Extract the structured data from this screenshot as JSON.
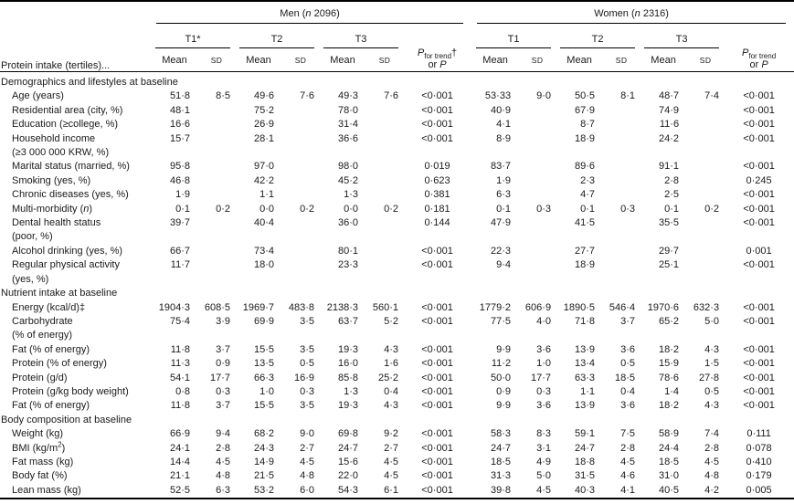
{
  "header": {
    "row_label": "Protein intake (tertiles)...",
    "mean_label": "Mean",
    "sd_label": "SD",
    "men": {
      "title_html": "Men (<i>n</i> 2096)",
      "tertiles": [
        "T1*",
        "T2",
        "T3"
      ],
      "p_html": "<i>P</i><sub>for trend</sub>†<br>or <i>P</i>"
    },
    "women": {
      "title_html": "Women (<i>n</i> 2316)",
      "tertiles": [
        "T1",
        "T2",
        "T3"
      ],
      "p_html": "<i>P</i><sub>for trend</sub><br>or <i>P</i>"
    }
  },
  "sections": [
    {
      "header": "Demographics and lifestyles at baseline",
      "rows": [
        {
          "label_html": "Age (years)",
          "men": [
            "51·8",
            "8·5",
            "49·6",
            "7·6",
            "49·3",
            "7·6"
          ],
          "men_p": "<0·001",
          "women": [
            "53·33",
            "9·0",
            "50·5",
            "8·1",
            "48·7",
            "7·4"
          ],
          "women_p": "<0·001"
        },
        {
          "label_html": "Residential area (city, %)",
          "men": [
            "48·1",
            "",
            "75·2",
            "",
            "78·0",
            ""
          ],
          "men_p": "<0·001",
          "women": [
            "40·9",
            "",
            "67·9",
            "",
            "74·9",
            ""
          ],
          "women_p": "<0·001"
        },
        {
          "label_html": "Education (≥college, %)",
          "men": [
            "16·6",
            "",
            "26·9",
            "",
            "31·4",
            ""
          ],
          "men_p": "<0·001",
          "women": [
            "4·1",
            "",
            "8·7",
            "",
            "11·6",
            ""
          ],
          "women_p": "<0·001"
        },
        {
          "label_html": "Household income<br>(≥3 000 000 KRW, %)",
          "men": [
            "15·7",
            "",
            "28·1",
            "",
            "36·6",
            ""
          ],
          "men_p": "<0·001",
          "women": [
            "8·9",
            "",
            "18·9",
            "",
            "24·2",
            ""
          ],
          "women_p": "<0·001"
        },
        {
          "label_html": "Marital status (married, %)",
          "men": [
            "95·8",
            "",
            "97·0",
            "",
            "98·0",
            ""
          ],
          "men_p": "0·019",
          "women": [
            "83·7",
            "",
            "89·6",
            "",
            "91·1",
            ""
          ],
          "women_p": "<0·001"
        },
        {
          "label_html": "Smoking (yes, %)",
          "men": [
            "46·8",
            "",
            "42·2",
            "",
            "45·2",
            ""
          ],
          "men_p": "0·623",
          "women": [
            "1·9",
            "",
            "2·3",
            "",
            "2·8",
            ""
          ],
          "women_p": "0·245"
        },
        {
          "label_html": "Chronic diseases (yes, %)",
          "men": [
            "1·9",
            "",
            "1·1",
            "",
            "1·3",
            ""
          ],
          "men_p": "0·381",
          "women": [
            "6·3",
            "",
            "4·7",
            "",
            "2·5",
            ""
          ],
          "women_p": "<0·001"
        },
        {
          "label_html": "Multi-morbidity (<i>n</i>)",
          "men": [
            "0·1",
            "0·2",
            "0·0",
            "0·2",
            "0·0",
            "0·2"
          ],
          "men_p": "0·181",
          "women": [
            "0·1",
            "0·3",
            "0·1",
            "0·3",
            "0·1",
            "0·2"
          ],
          "women_p": "<0·001"
        },
        {
          "label_html": "Dental health status<br>(poor, %)",
          "men": [
            "39·7",
            "",
            "40·4",
            "",
            "36·0",
            ""
          ],
          "men_p": "0·144",
          "women": [
            "47·9",
            "",
            "41·5",
            "",
            "35·5",
            ""
          ],
          "women_p": "<0·001"
        },
        {
          "label_html": "Alcohol drinking (yes, %)",
          "men": [
            "66·7",
            "",
            "73·4",
            "",
            "80·1",
            ""
          ],
          "men_p": "<0·001",
          "women": [
            "22·3",
            "",
            "27·7",
            "",
            "29·7",
            ""
          ],
          "women_p": "0·001"
        },
        {
          "label_html": "Regular physical activity<br>(yes, %)",
          "men": [
            "11·7",
            "",
            "18·0",
            "",
            "23·3",
            ""
          ],
          "men_p": "<0·001",
          "women": [
            "9·4",
            "",
            "18·9",
            "",
            "25·1",
            ""
          ],
          "women_p": "<0·001"
        }
      ]
    },
    {
      "header": "Nutrient intake at baseline",
      "rows": [
        {
          "label_html": "Energy (kcal/d)‡",
          "men": [
            "1904·3",
            "608·5",
            "1969·7",
            "483·8",
            "2138·3",
            "560·1"
          ],
          "men_p": "<0·001",
          "women": [
            "1779·2",
            "606·9",
            "1890·5",
            "546·4",
            "1970·6",
            "632·3"
          ],
          "women_p": "<0·001"
        },
        {
          "label_html": "Carbohydrate<br>(% of energy)",
          "men": [
            "75·4",
            "3·9",
            "69·9",
            "3·5",
            "63·7",
            "5·2"
          ],
          "men_p": "<0·001",
          "women": [
            "77·5",
            "4·0",
            "71·8",
            "3·7",
            "65·2",
            "5·0"
          ],
          "women_p": "<0·001"
        },
        {
          "label_html": "Fat (% of energy)",
          "men": [
            "11·8",
            "3·7",
            "15·5",
            "3·5",
            "19·3",
            "4·3"
          ],
          "men_p": "<0·001",
          "women": [
            "9·9",
            "3·6",
            "13·9",
            "3·6",
            "18·2",
            "4·3"
          ],
          "women_p": "<0·001"
        },
        {
          "label_html": "Protein (% of energy)",
          "men": [
            "11·3",
            "0·9",
            "13·5",
            "0·5",
            "16·0",
            "1·6"
          ],
          "men_p": "<0·001",
          "women": [
            "11·2",
            "1·0",
            "13·4",
            "0·5",
            "15·9",
            "1·5"
          ],
          "women_p": "<0·001"
        },
        {
          "label_html": "Protein (g/d)",
          "men": [
            "54·1",
            "17·7",
            "66·3",
            "16·9",
            "85·8",
            "25·2"
          ],
          "men_p": "<0·001",
          "women": [
            "50·0",
            "17·7",
            "63·3",
            "18·5",
            "78·6",
            "27·8"
          ],
          "women_p": "<0·001"
        },
        {
          "label_html": "Protein (g/kg body weight)",
          "men": [
            "0·8",
            "0·3",
            "1·0",
            "0·3",
            "1·3",
            "0·4"
          ],
          "men_p": "<0·001",
          "women": [
            "0·9",
            "0·3",
            "1·1",
            "0·4",
            "1·4",
            "0·5"
          ],
          "women_p": "<0·001"
        },
        {
          "label_html": "Fat (% of energy)",
          "men": [
            "11·8",
            "3·7",
            "15·5",
            "3·5",
            "19·3",
            "4·3"
          ],
          "men_p": "<0·001",
          "women": [
            "9·9",
            "3·6",
            "13·9",
            "3·6",
            "18·2",
            "4·3"
          ],
          "women_p": "<0·001"
        }
      ]
    },
    {
      "header": "Body composition at baseline",
      "rows": [
        {
          "label_html": "Weight (kg)",
          "men": [
            "66·9",
            "9·4",
            "68·2",
            "9·0",
            "69·8",
            "9·2"
          ],
          "men_p": "<0·001",
          "women": [
            "58·3",
            "8·3",
            "59·1",
            "7·5",
            "58·9",
            "7·4"
          ],
          "women_p": "0·111"
        },
        {
          "label_html": "BMI (kg/m<sup>2</sup>)",
          "men": [
            "24·1",
            "2·8",
            "24·3",
            "2·7",
            "24·7",
            "2·7"
          ],
          "men_p": "<0·001",
          "women": [
            "24·7",
            "3·1",
            "24·7",
            "2·8",
            "24·4",
            "2·8"
          ],
          "women_p": "0·078"
        },
        {
          "label_html": "Fat mass (kg)",
          "men": [
            "14·4",
            "4·5",
            "14·9",
            "4·5",
            "15·6",
            "4·5"
          ],
          "men_p": "<0·001",
          "women": [
            "18·5",
            "4·9",
            "18·8",
            "4·5",
            "18·5",
            "4·5"
          ],
          "women_p": "0·410"
        },
        {
          "label_html": "Body fat (%)",
          "men": [
            "21·1",
            "4·8",
            "21·5",
            "4·8",
            "22·0",
            "4·5"
          ],
          "men_p": "<0·001",
          "women": [
            "31·3",
            "5·0",
            "31·5",
            "4·6",
            "31·0",
            "4·8"
          ],
          "women_p": "0·179"
        },
        {
          "label_html": "Lean mass (kg)",
          "men": [
            "52·5",
            "6·3",
            "53·2",
            "6·0",
            "54·3",
            "6·1"
          ],
          "men_p": "<0·001",
          "women": [
            "39·8",
            "4·5",
            "40·3",
            "4·1",
            "40·5",
            "4·2"
          ],
          "women_p": "0·005"
        }
      ]
    }
  ]
}
